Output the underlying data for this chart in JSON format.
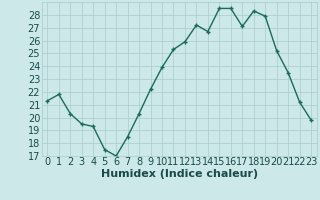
{
  "x": [
    0,
    1,
    2,
    3,
    4,
    5,
    6,
    7,
    8,
    9,
    10,
    11,
    12,
    13,
    14,
    15,
    16,
    17,
    18,
    19,
    20,
    21,
    22,
    23
  ],
  "y": [
    21.3,
    21.8,
    20.3,
    19.5,
    19.3,
    17.5,
    17.0,
    18.5,
    20.3,
    22.2,
    23.9,
    25.3,
    25.9,
    27.2,
    26.7,
    28.5,
    28.5,
    27.1,
    28.3,
    27.9,
    25.2,
    23.5,
    21.2,
    19.8
  ],
  "xlabel": "Humidex (Indice chaleur)",
  "ylim": [
    17,
    29
  ],
  "xlim": [
    -0.5,
    23.5
  ],
  "yticks": [
    17,
    18,
    19,
    20,
    21,
    22,
    23,
    24,
    25,
    26,
    27,
    28
  ],
  "xticks": [
    0,
    1,
    2,
    3,
    4,
    5,
    6,
    7,
    8,
    9,
    10,
    11,
    12,
    13,
    14,
    15,
    16,
    17,
    18,
    19,
    20,
    21,
    22,
    23
  ],
  "line_color": "#1a6b5a",
  "marker": "+",
  "marker_size": 3,
  "marker_edge_width": 1.0,
  "line_width": 1.0,
  "bg_color": "#cce8e8",
  "grid_color": "#aacccc",
  "font_size_xlabel": 8,
  "font_size_ticks": 7,
  "xlabel_color": "#1a4a4a",
  "tick_color": "#1a4a4a"
}
